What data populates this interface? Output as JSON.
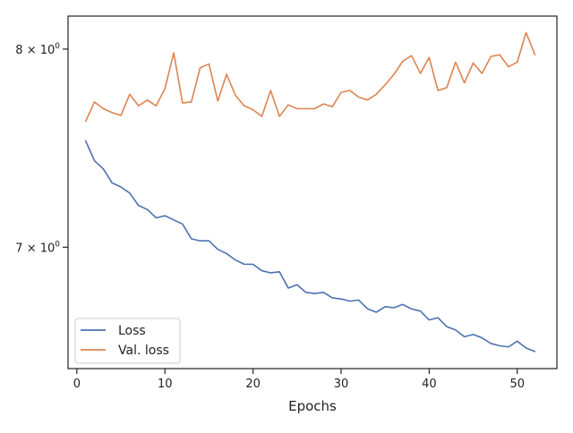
{
  "chart_data": {
    "type": "line",
    "title": "",
    "xlabel": "Epochs",
    "ylabel": "",
    "xlim": [
      -1,
      54.5
    ],
    "ylim": [
      6.45,
      8.18
    ],
    "y_scale": "log",
    "grid": false,
    "legend_position": "lower-left",
    "x_ticks": [
      {
        "value": 0,
        "label": "0"
      },
      {
        "value": 10,
        "label": "10"
      },
      {
        "value": 20,
        "label": "20"
      },
      {
        "value": 30,
        "label": "30"
      },
      {
        "value": 40,
        "label": "40"
      },
      {
        "value": 50,
        "label": "50"
      }
    ],
    "y_ticks": [
      {
        "value": 7,
        "base": "7",
        "exponent": "0"
      },
      {
        "value": 8,
        "base": "8",
        "exponent": "0"
      }
    ],
    "series": [
      {
        "name": "Loss",
        "color": "#4c72b0",
        "x": [
          1,
          2,
          3,
          4,
          5,
          6,
          7,
          8,
          9,
          10,
          11,
          12,
          13,
          14,
          15,
          16,
          17,
          18,
          19,
          20,
          21,
          22,
          23,
          24,
          25,
          26,
          27,
          28,
          29,
          30,
          31,
          32,
          33,
          34,
          35,
          36,
          37,
          38,
          39,
          40,
          41,
          42,
          43,
          44,
          45,
          46,
          47,
          48,
          49,
          50,
          51,
          52
        ],
        "y": [
          7.52,
          7.42,
          7.38,
          7.31,
          7.29,
          7.26,
          7.2,
          7.18,
          7.14,
          7.15,
          7.13,
          7.11,
          7.04,
          7.03,
          7.03,
          6.99,
          6.97,
          6.94,
          6.92,
          6.92,
          6.89,
          6.88,
          6.885,
          6.81,
          6.825,
          6.79,
          6.785,
          6.79,
          6.765,
          6.76,
          6.75,
          6.755,
          6.715,
          6.7,
          6.725,
          6.72,
          6.735,
          6.715,
          6.705,
          6.665,
          6.675,
          6.635,
          6.62,
          6.59,
          6.6,
          6.585,
          6.56,
          6.55,
          6.545,
          6.57,
          6.54,
          6.525
        ]
      },
      {
        "name": "Val. loss",
        "color": "#dd8452",
        "x": [
          1,
          2,
          3,
          4,
          5,
          6,
          7,
          8,
          9,
          10,
          11,
          12,
          13,
          14,
          15,
          16,
          17,
          18,
          19,
          20,
          21,
          22,
          23,
          24,
          25,
          26,
          27,
          28,
          29,
          30,
          31,
          32,
          33,
          34,
          35,
          36,
          37,
          38,
          39,
          40,
          41,
          42,
          43,
          44,
          45,
          46,
          47,
          48,
          49,
          50,
          51,
          52
        ],
        "y": [
          7.62,
          7.72,
          7.685,
          7.665,
          7.65,
          7.76,
          7.7,
          7.73,
          7.7,
          7.79,
          7.98,
          7.715,
          7.72,
          7.9,
          7.92,
          7.725,
          7.865,
          7.755,
          7.7,
          7.68,
          7.645,
          7.78,
          7.645,
          7.705,
          7.685,
          7.685,
          7.685,
          7.71,
          7.695,
          7.77,
          7.78,
          7.745,
          7.73,
          7.76,
          7.81,
          7.865,
          7.935,
          7.965,
          7.87,
          7.955,
          7.78,
          7.795,
          7.93,
          7.82,
          7.925,
          7.87,
          7.96,
          7.97,
          7.905,
          7.93,
          8.09,
          7.97
        ]
      }
    ]
  }
}
